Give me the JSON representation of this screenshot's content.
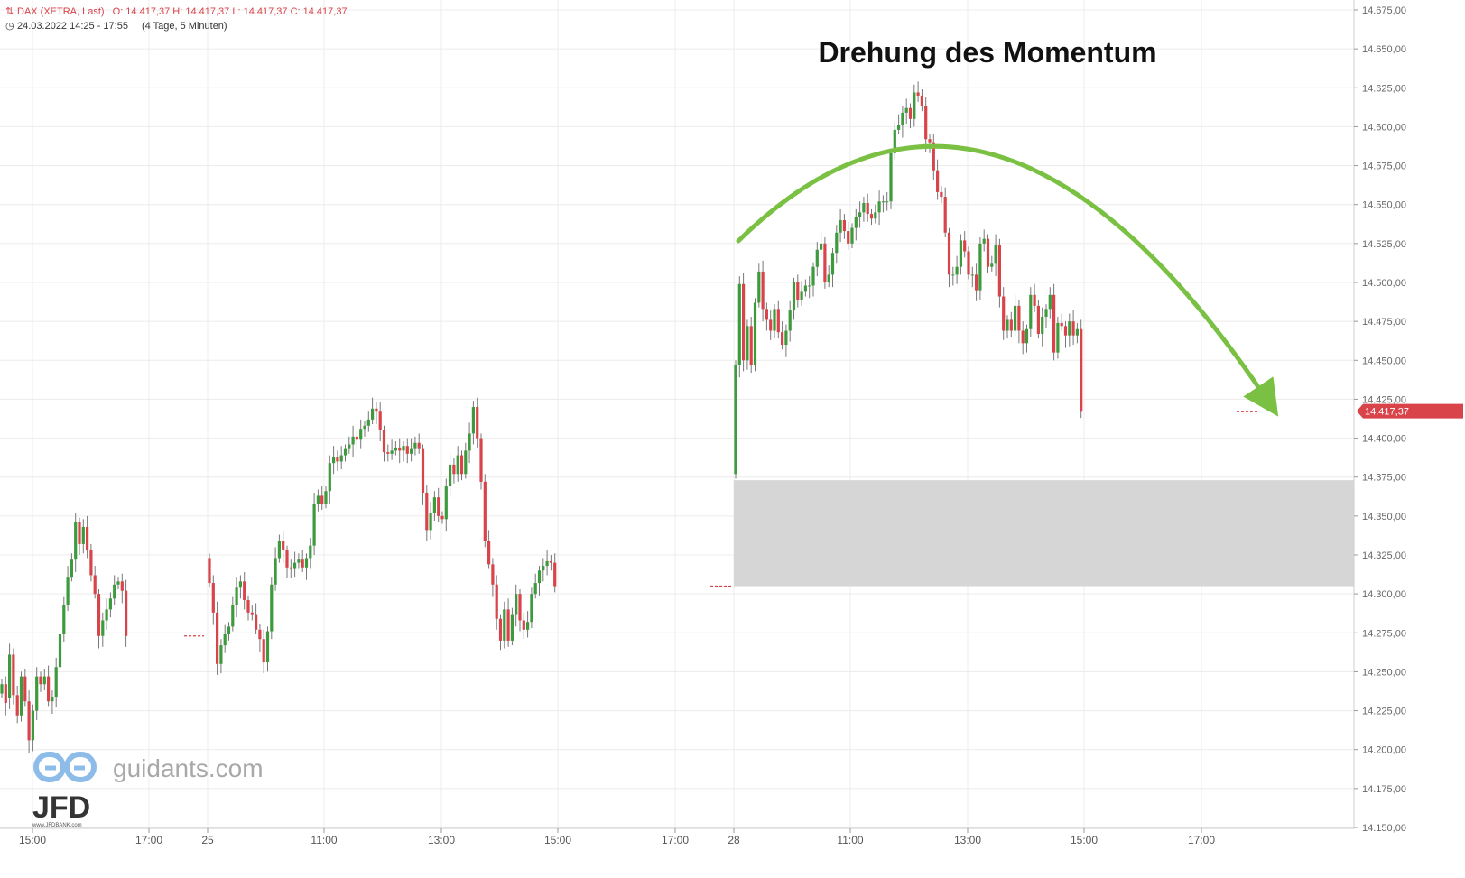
{
  "header": {
    "instrument": "DAX (XETRA, Last)",
    "ohlc": "O: 14.417,37  H: 14.417,37  L: 14.417,37  C: 14.417,37",
    "date_range": "24.03.2022 14:25 - 17:55",
    "period": "(4 Tage, 5 Minuten)"
  },
  "annotation": "Drehung des Momentum",
  "watermark": {
    "site": "guidants.com",
    "brand": "JFD",
    "brand_url": "www.JFDBANK.com"
  },
  "last_price_label": "14.417,37",
  "colors": {
    "up": "#3d9a3d",
    "down": "#d9434a",
    "arrow": "#7ac143",
    "zone": "#d6d6d6",
    "grid": "#ececec"
  },
  "chart_data": {
    "type": "candlestick",
    "title": "",
    "ylim": [
      14150,
      14675
    ],
    "y_ticks": [
      "14.675,00",
      "14.650,00",
      "14.625,00",
      "14.600,00",
      "14.575,00",
      "14.550,00",
      "14.525,00",
      "14.500,00",
      "14.475,00",
      "14.450,00",
      "14.425,00",
      "14.400,00",
      "14.375,00",
      "14.350,00",
      "14.325,00",
      "14.300,00",
      "14.275,00",
      "14.250,00",
      "14.225,00",
      "14.200,00",
      "14.175,00",
      "14.150,00"
    ],
    "x_ticks": [
      "15:00",
      "17:00",
      "25",
      "11:00",
      "13:00",
      "15:00",
      "17:00",
      "28",
      "11:00",
      "13:00",
      "15:00",
      "17:00"
    ],
    "last_close": 14417.37,
    "support_zone": {
      "low": 14305,
      "high": 14373
    },
    "prev_close_markers": [
      14273,
      14305,
      14417
    ],
    "segments": [
      {
        "day": "24.03",
        "bars": [
          [
            14236,
            14242
          ],
          [
            14242,
            14230
          ],
          [
            14233,
            14261
          ],
          [
            14261,
            14235
          ],
          [
            14235,
            14222
          ],
          [
            14222,
            14247
          ],
          [
            14247,
            14231
          ],
          [
            14231,
            14206
          ],
          [
            14206,
            14225
          ],
          [
            14225,
            14247
          ],
          [
            14247,
            14242
          ],
          [
            14242,
            14247
          ],
          [
            14247,
            14231
          ],
          [
            14231,
            14234
          ],
          [
            14234,
            14253
          ],
          [
            14253,
            14274
          ],
          [
            14274,
            14293
          ],
          [
            14293,
            14311
          ],
          [
            14311,
            14322
          ],
          [
            14322,
            14346
          ],
          [
            14346,
            14332
          ],
          [
            14332,
            14343
          ],
          [
            14343,
            14328
          ],
          [
            14328,
            14312
          ],
          [
            14312,
            14300
          ],
          [
            14300,
            14273
          ],
          [
            14273,
            14283
          ],
          [
            14283,
            14290
          ],
          [
            14290,
            14297
          ],
          [
            14297,
            14306
          ],
          [
            14306,
            14308
          ],
          [
            14308,
            14302
          ],
          [
            14302,
            14273
          ]
        ]
      },
      {
        "day": "25.03",
        "bars": [
          [
            14323,
            14307
          ],
          [
            14307,
            14288
          ],
          [
            14288,
            14255
          ],
          [
            14255,
            14267
          ],
          [
            14267,
            14274
          ],
          [
            14274,
            14279
          ],
          [
            14279,
            14293
          ],
          [
            14293,
            14304
          ],
          [
            14304,
            14308
          ],
          [
            14308,
            14296
          ],
          [
            14296,
            14288
          ],
          [
            14288,
            14287
          ],
          [
            14287,
            14277
          ],
          [
            14277,
            14271
          ],
          [
            14271,
            14256
          ],
          [
            14256,
            14276
          ],
          [
            14276,
            14306
          ],
          [
            14306,
            14323
          ],
          [
            14323,
            14334
          ],
          [
            14334,
            14328
          ],
          [
            14328,
            14317
          ],
          [
            14317,
            14316
          ],
          [
            14316,
            14320
          ],
          [
            14320,
            14322
          ],
          [
            14322,
            14317
          ],
          [
            14317,
            14323
          ],
          [
            14323,
            14331
          ],
          [
            14331,
            14358
          ],
          [
            14358,
            14363
          ],
          [
            14363,
            14358
          ],
          [
            14358,
            14366
          ],
          [
            14366,
            14384
          ],
          [
            14384,
            14388
          ],
          [
            14388,
            14385
          ],
          [
            14385,
            14389
          ],
          [
            14389,
            14393
          ],
          [
            14393,
            14396
          ],
          [
            14396,
            14401
          ],
          [
            14401,
            14399
          ],
          [
            14399,
            14406
          ],
          [
            14406,
            14408
          ],
          [
            14408,
            14412
          ],
          [
            14412,
            14419
          ],
          [
            14419,
            14417
          ],
          [
            14417,
            14405
          ],
          [
            14405,
            14391
          ],
          [
            14391,
            14390
          ],
          [
            14390,
            14392
          ],
          [
            14392,
            14394
          ],
          [
            14394,
            14392
          ],
          [
            14392,
            14395
          ],
          [
            14395,
            14390
          ],
          [
            14390,
            14393
          ],
          [
            14393,
            14397
          ],
          [
            14397,
            14393
          ],
          [
            14393,
            14365
          ],
          [
            14365,
            14341
          ],
          [
            14341,
            14352
          ],
          [
            14352,
            14362
          ],
          [
            14362,
            14350
          ],
          [
            14350,
            14348
          ],
          [
            14348,
            14369
          ],
          [
            14369,
            14383
          ],
          [
            14383,
            14377
          ],
          [
            14377,
            14389
          ],
          [
            14389,
            14377
          ],
          [
            14377,
            14392
          ],
          [
            14392,
            14403
          ],
          [
            14403,
            14420
          ],
          [
            14420,
            14400
          ],
          [
            14400,
            14372
          ],
          [
            14372,
            14334
          ],
          [
            14334,
            14319
          ],
          [
            14319,
            14306
          ],
          [
            14306,
            14284
          ],
          [
            14284,
            14270
          ],
          [
            14270,
            14290
          ],
          [
            14290,
            14270
          ],
          [
            14270,
            14287
          ],
          [
            14287,
            14300
          ],
          [
            14300,
            14283
          ],
          [
            14283,
            14277
          ],
          [
            14277,
            14282
          ],
          [
            14282,
            14300
          ],
          [
            14300,
            14307
          ],
          [
            14307,
            14315
          ],
          [
            14315,
            14318
          ],
          [
            14318,
            14321
          ],
          [
            14321,
            14320
          ],
          [
            14320,
            14305
          ]
        ]
      },
      {
        "day": "28.03",
        "bars": [
          [
            14377,
            14447
          ],
          [
            14447,
            14499
          ],
          [
            14499,
            14450
          ],
          [
            14450,
            14472
          ],
          [
            14472,
            14447
          ],
          [
            14447,
            14487
          ],
          [
            14487,
            14507
          ],
          [
            14507,
            14483
          ],
          [
            14483,
            14476
          ],
          [
            14476,
            14469
          ],
          [
            14469,
            14483
          ],
          [
            14483,
            14468
          ],
          [
            14468,
            14460
          ],
          [
            14460,
            14469
          ],
          [
            14469,
            14482
          ],
          [
            14482,
            14500
          ],
          [
            14500,
            14489
          ],
          [
            14489,
            14494
          ],
          [
            14494,
            14498
          ],
          [
            14498,
            14498
          ],
          [
            14498,
            14510
          ],
          [
            14510,
            14521
          ],
          [
            14521,
            14525
          ],
          [
            14525,
            14500
          ],
          [
            14500,
            14505
          ],
          [
            14505,
            14519
          ],
          [
            14519,
            14532
          ],
          [
            14532,
            14540
          ],
          [
            14540,
            14533
          ],
          [
            14533,
            14525
          ],
          [
            14525,
            14535
          ],
          [
            14535,
            14542
          ],
          [
            14542,
            14545
          ],
          [
            14545,
            14551
          ],
          [
            14551,
            14544
          ],
          [
            14544,
            14541
          ],
          [
            14541,
            14545
          ],
          [
            14545,
            14552
          ],
          [
            14552,
            14552
          ],
          [
            14552,
            14552
          ],
          [
            14552,
            14583
          ],
          [
            14583,
            14598
          ],
          [
            14598,
            14601
          ],
          [
            14601,
            14609
          ],
          [
            14609,
            14612
          ],
          [
            14612,
            14605
          ],
          [
            14605,
            14622
          ],
          [
            14622,
            14620
          ],
          [
            14620,
            14613
          ],
          [
            14613,
            14592
          ],
          [
            14592,
            14590
          ],
          [
            14590,
            14572
          ],
          [
            14572,
            14558
          ],
          [
            14558,
            14555
          ],
          [
            14555,
            14532
          ],
          [
            14532,
            14505
          ],
          [
            14505,
            14505
          ],
          [
            14505,
            14510
          ],
          [
            14510,
            14527
          ],
          [
            14527,
            14520
          ],
          [
            14520,
            14505
          ],
          [
            14505,
            14505
          ],
          [
            14505,
            14495
          ],
          [
            14495,
            14525
          ],
          [
            14525,
            14528
          ],
          [
            14528,
            14510
          ],
          [
            14510,
            14512
          ],
          [
            14512,
            14524
          ],
          [
            14524,
            14491
          ],
          [
            14491,
            14469
          ],
          [
            14469,
            14476
          ],
          [
            14476,
            14469
          ],
          [
            14469,
            14485
          ],
          [
            14485,
            14469
          ],
          [
            14469,
            14461
          ],
          [
            14461,
            14470
          ],
          [
            14470,
            14492
          ],
          [
            14492,
            14485
          ],
          [
            14485,
            14467
          ],
          [
            14467,
            14478
          ],
          [
            14478,
            14483
          ],
          [
            14483,
            14492
          ],
          [
            14492,
            14455
          ],
          [
            14455,
            14474
          ],
          [
            14474,
            14472
          ],
          [
            14472,
            14466
          ],
          [
            14466,
            14475
          ],
          [
            14475,
            14466
          ],
          [
            14466,
            14470
          ],
          [
            14470,
            14417
          ]
        ]
      }
    ]
  }
}
